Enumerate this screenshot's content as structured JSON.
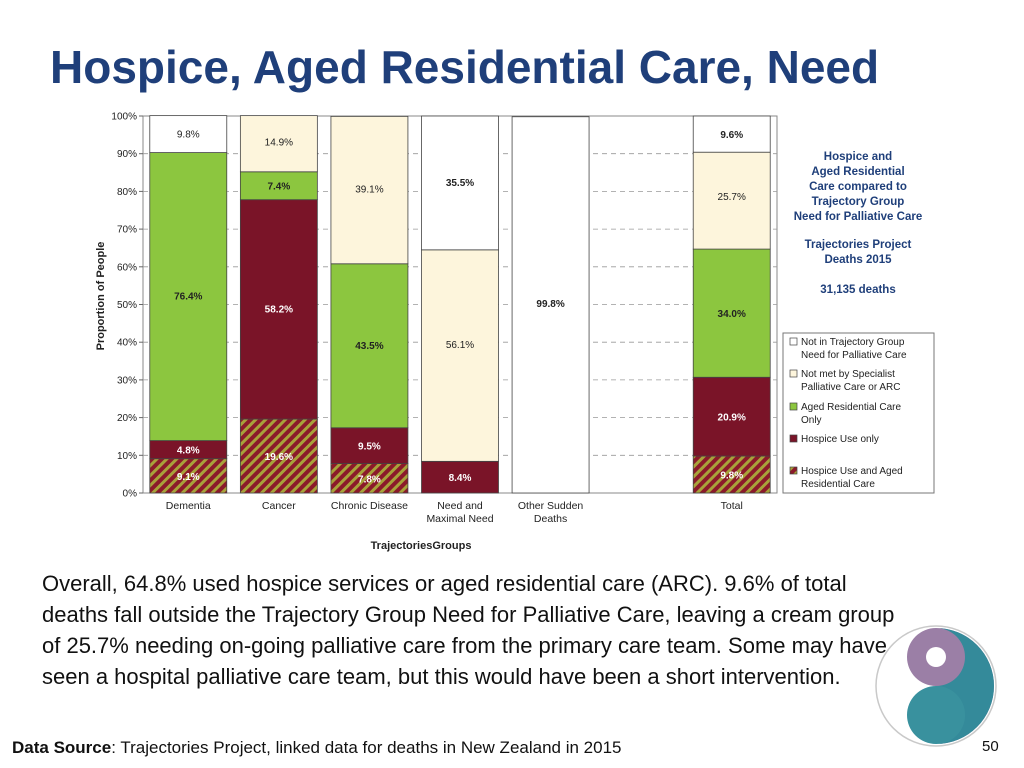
{
  "title": "Hospice, Aged Residential Care, Need",
  "body_text": "Overall, 64.8% used hospice services or aged residential care (ARC). 9.6% of total deaths fall outside the Trajectory Group Need for Palliative Care, leaving a cream group of 25.7% needing on-going palliative care from the primary care team. Some may have seen a hospital palliative care team, but this would have been a short intervention.",
  "source": {
    "label": "Data Source",
    "text": ": Trajectories Project, linked data for deaths in New Zealand in 2015"
  },
  "page_number": "50",
  "logo": {
    "icon": "organisation-swirl-logo",
    "colors": [
      "#2e8b99",
      "#9b7fa6"
    ]
  },
  "chart_data": {
    "type": "bar",
    "stacked": true,
    "percent_stacked": true,
    "ylabel": "Proportion of People",
    "xlabel": "TrajectoriesGroups",
    "ylim": [
      0,
      100
    ],
    "y_ticks": [
      "0%",
      "10%",
      "20%",
      "30%",
      "40%",
      "50%",
      "60%",
      "70%",
      "80%",
      "90%",
      "100%"
    ],
    "grid": "horizontal dashed",
    "categories": [
      "Dementia",
      "Cancer",
      "Chronic Disease",
      "Need and Maximal Need",
      "Other Sudden Deaths",
      "",
      "Total"
    ],
    "series": [
      {
        "name": "Hospice Use and Aged Residential Care",
        "color": "#8b1a2a",
        "pattern": "hatch-olive",
        "values": [
          9.1,
          19.6,
          7.8,
          0,
          0,
          null,
          9.8
        ],
        "labels": [
          "9.1%",
          "19.6%",
          "7.8%",
          "",
          "",
          "",
          "9.8%"
        ]
      },
      {
        "name": "Hospice Use only",
        "color": "#7a1428",
        "values": [
          4.8,
          58.2,
          9.5,
          8.4,
          0,
          null,
          20.9
        ],
        "labels": [
          "4.8%",
          "58.2%",
          "9.5%",
          "8.4%",
          "",
          "",
          "20.9%"
        ]
      },
      {
        "name": "Aged Residential Care Only",
        "color": "#8cc63f",
        "values": [
          76.4,
          7.4,
          43.5,
          0,
          0,
          null,
          34.0
        ],
        "labels": [
          "76.4%",
          "7.4%",
          "43.5%",
          "",
          "",
          "",
          "34.0%"
        ]
      },
      {
        "name": "Not met by Specialist Palliative Care or ARC",
        "color": "#fdf5dc",
        "values": [
          0,
          14.9,
          39.1,
          56.1,
          0,
          null,
          25.7
        ],
        "labels": [
          "",
          "14.9%",
          "39.1%",
          "56.1%",
          "",
          "",
          "25.7%"
        ]
      },
      {
        "name": "Not in Trajectory Group Need for Palliative Care",
        "color": "#ffffff",
        "values": [
          9.8,
          0,
          0,
          35.5,
          99.8,
          null,
          9.6
        ],
        "labels": [
          "9.8%",
          "",
          "",
          "35.5%",
          "99.8%",
          "",
          "9.6%"
        ]
      }
    ],
    "legend_position": "right",
    "legend": [
      {
        "name": "Not in Trajectory Group Need for Palliative Care",
        "lines": [
          "Not in Trajectory Group",
          "Need for Palliative Care"
        ]
      },
      {
        "name": "Not met by Specialist Palliative Care or ARC",
        "lines": [
          "Not met by Specialist",
          "Palliative Care or ARC"
        ]
      },
      {
        "name": "Aged Residential Care Only",
        "lines": [
          "Aged Residential Care",
          "Only"
        ]
      },
      {
        "name": "Hospice Use only",
        "lines": [
          "Hospice Use only"
        ]
      },
      {
        "name": "Hospice Use and Aged Residential Care",
        "lines": [
          "Hospice Use and Aged",
          "Residential Care"
        ]
      }
    ],
    "annotation": {
      "heading_lines": [
        "Hospice and",
        "Aged Residential",
        "Care compared to",
        "Trajectory Group",
        "Need for Palliative Care"
      ],
      "subheading_lines": [
        "Trajectories Project",
        "Deaths 2015"
      ],
      "deaths": "31,135 deaths"
    },
    "category_label_lines": [
      [
        "Dementia"
      ],
      [
        "Cancer"
      ],
      [
        "Chronic Disease"
      ],
      [
        "Need and",
        "Maximal Need"
      ],
      [
        "Other Sudden",
        "Deaths"
      ],
      [
        ""
      ],
      [
        "Total"
      ]
    ]
  }
}
